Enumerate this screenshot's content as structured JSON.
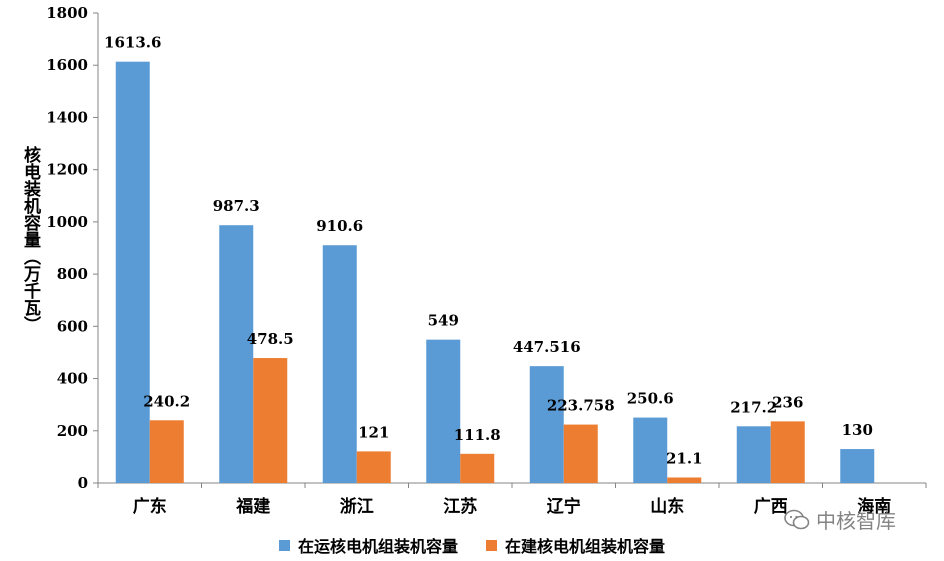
{
  "chart_data": {
    "type": "bar",
    "categories": [
      "广东",
      "福建",
      "浙江",
      "江苏",
      "辽宁",
      "山东",
      "广西",
      "海南"
    ],
    "series": [
      {
        "name": "在运核电机组装机容量",
        "color": "#5B9BD5",
        "values": [
          1613.6,
          987.3,
          910.6,
          549,
          447.516,
          250.6,
          217.2,
          130
        ],
        "labels": [
          "1613.6",
          "987.3",
          "910.6",
          "549",
          "447.516",
          "250.6",
          "217.2",
          "130"
        ]
      },
      {
        "name": "在建核电机组装机容量",
        "color": "#ED7D31",
        "values": [
          240.2,
          478.5,
          121,
          111.8,
          223.758,
          21.1,
          236,
          null
        ],
        "labels": [
          "240.2",
          "478.5",
          "121",
          "111.8",
          "223.758",
          "21.1",
          "236",
          ""
        ]
      }
    ],
    "ylabel": "核电装机容量（万千瓦）",
    "ylim": [
      0,
      1800
    ],
    "yticks": [
      0,
      200,
      400,
      600,
      800,
      1000,
      1200,
      1400,
      1600,
      1800
    ],
    "legend_position": "bottom",
    "grid": false
  },
  "watermark": {
    "text": "中核智库",
    "icon": "wechat-icon"
  }
}
